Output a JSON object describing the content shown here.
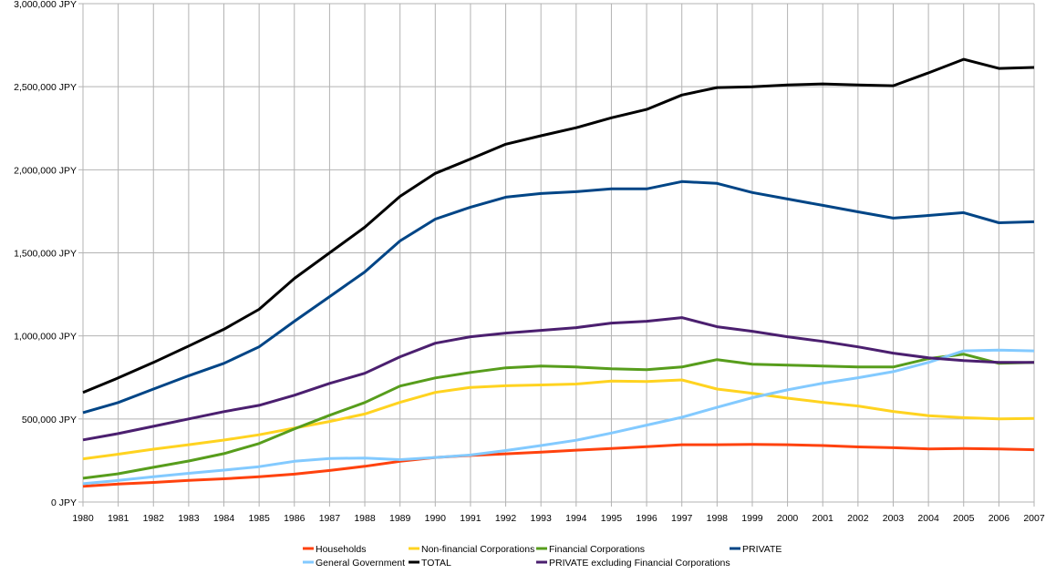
{
  "chart_data": {
    "type": "line",
    "title": "",
    "xlabel": "",
    "ylabel": "",
    "ylim": [
      0,
      3000000
    ],
    "ytick_step": 500000,
    "ytick_labels": [
      "0 JPY",
      "500,000 JPY",
      "1,000,000 JPY",
      "1,500,000 JPY",
      "2,000,000 JPY",
      "2,500,000 JPY",
      "3,000,000 JPY"
    ],
    "grid": true,
    "legend_placement": "bottom",
    "x": [
      1980,
      1981,
      1982,
      1983,
      1984,
      1985,
      1986,
      1987,
      1988,
      1989,
      1990,
      1991,
      1992,
      1993,
      1994,
      1995,
      1996,
      1997,
      1998,
      1999,
      2000,
      2001,
      2002,
      2003,
      2004,
      2005,
      2006,
      2007
    ],
    "series": [
      {
        "name": "Households",
        "color": "#ff420e",
        "values": [
          95000,
          108000,
          118000,
          130000,
          140000,
          152000,
          168000,
          190000,
          215000,
          245000,
          268000,
          280000,
          290000,
          300000,
          312000,
          322000,
          333000,
          345000,
          345000,
          347000,
          345000,
          340000,
          332000,
          327000,
          320000,
          322000,
          320000,
          315000
        ]
      },
      {
        "name": "Non-financial Corporations",
        "color": "#ffd320",
        "values": [
          260000,
          288000,
          318000,
          345000,
          373000,
          405000,
          445000,
          485000,
          530000,
          600000,
          660000,
          690000,
          700000,
          705000,
          710000,
          728000,
          725000,
          735000,
          680000,
          655000,
          625000,
          600000,
          578000,
          545000,
          520000,
          508000,
          500000,
          503000
        ]
      },
      {
        "name": "Financial Corporations",
        "color": "#579d1c",
        "values": [
          143000,
          170000,
          209000,
          247000,
          291000,
          352000,
          440000,
          522000,
          599000,
          698000,
          747000,
          780000,
          808000,
          819000,
          813000,
          802000,
          797000,
          813000,
          857000,
          830000,
          824000,
          819000,
          813000,
          813000,
          863000,
          890000,
          835000,
          841000
        ]
      },
      {
        "name": "PRIVATE",
        "color": "#004586",
        "values": [
          538000,
          599000,
          680000,
          760000,
          835000,
          934000,
          1088000,
          1236000,
          1385000,
          1572000,
          1703000,
          1775000,
          1835000,
          1857000,
          1868000,
          1885000,
          1885000,
          1929000,
          1918000,
          1863000,
          1824000,
          1786000,
          1747000,
          1709000,
          1725000,
          1742000,
          1681000,
          1687000
        ]
      },
      {
        "name": "General Government",
        "color": "#83caff",
        "values": [
          110000,
          130000,
          152000,
          173000,
          192000,
          213000,
          245000,
          262000,
          265000,
          255000,
          268000,
          283000,
          310000,
          340000,
          372000,
          415000,
          463000,
          510000,
          570000,
          628000,
          675000,
          715000,
          748000,
          785000,
          840000,
          910000,
          915000,
          910000
        ]
      },
      {
        "name": "TOTAL",
        "color": "#000000",
        "values": [
          660000,
          747000,
          840000,
          939000,
          1040000,
          1160000,
          1346000,
          1500000,
          1654000,
          1840000,
          1978000,
          2065000,
          2154000,
          2205000,
          2253000,
          2313000,
          2363000,
          2450000,
          2495000,
          2500000,
          2511000,
          2517000,
          2511000,
          2506000,
          2583000,
          2665000,
          2610000,
          2616000
        ]
      },
      {
        "name": "PRIVATE excluding Financial Corporations",
        "color": "#4b1f6f",
        "values": [
          374000,
          412000,
          456000,
          500000,
          544000,
          582000,
          643000,
          714000,
          775000,
          874000,
          956000,
          995000,
          1017000,
          1033000,
          1050000,
          1077000,
          1088000,
          1110000,
          1055000,
          1028000,
          995000,
          967000,
          934000,
          896000,
          868000,
          852000,
          841000,
          841000
        ]
      }
    ]
  }
}
